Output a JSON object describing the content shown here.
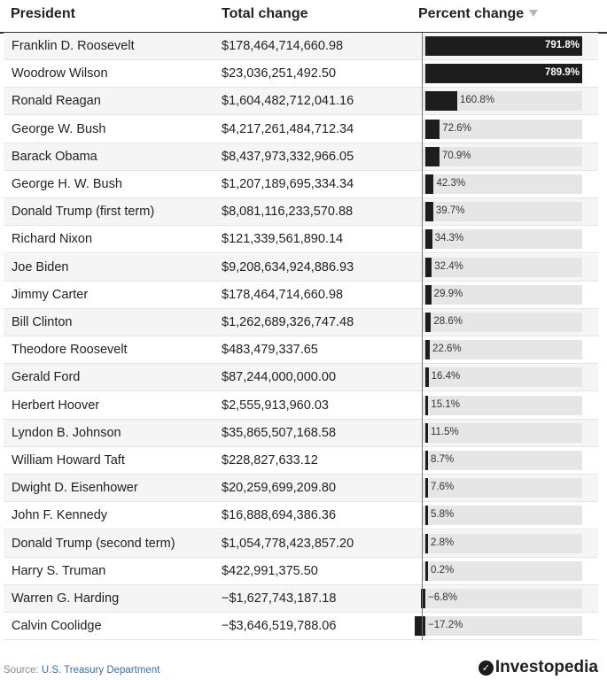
{
  "headers": {
    "president": "President",
    "total": "Total change",
    "percent": "Percent change"
  },
  "chart_data": {
    "type": "table",
    "columns": [
      "President",
      "Total change",
      "Percent change"
    ],
    "rows": [
      {
        "name": "Franklin D. Roosevelt",
        "total": "$178,464,714,660.98",
        "pct": 791.8,
        "label": "791.8%"
      },
      {
        "name": "Woodrow Wilson",
        "total": "$23,036,251,492.50",
        "pct": 789.9,
        "label": "789.9%"
      },
      {
        "name": "Ronald Reagan",
        "total": "$1,604,482,712,041.16",
        "pct": 160.8,
        "label": "160.8%"
      },
      {
        "name": "George W. Bush",
        "total": "$4,217,261,484,712.34",
        "pct": 72.6,
        "label": "72.6%"
      },
      {
        "name": "Barack Obama",
        "total": "$8,437,973,332,966.05",
        "pct": 70.9,
        "label": "70.9%"
      },
      {
        "name": "George H. W. Bush",
        "total": "$1,207,189,695,334.34",
        "pct": 42.3,
        "label": "42.3%"
      },
      {
        "name": "Donald Trump (first term)",
        "total": "$8,081,116,233,570.88",
        "pct": 39.7,
        "label": "39.7%"
      },
      {
        "name": "Richard Nixon",
        "total": "$121,339,561,890.14",
        "pct": 34.3,
        "label": "34.3%"
      },
      {
        "name": "Joe Biden",
        "total": "$9,208,634,924,886.93",
        "pct": 32.4,
        "label": "32.4%"
      },
      {
        "name": "Jimmy Carter",
        "total": "$178,464,714,660.98",
        "pct": 29.9,
        "label": "29.9%"
      },
      {
        "name": "Bill Clinton",
        "total": "$1,262,689,326,747.48",
        "pct": 28.6,
        "label": "28.6%"
      },
      {
        "name": "Theodore Roosevelt",
        "total": "$483,479,337.65",
        "pct": 22.6,
        "label": "22.6%"
      },
      {
        "name": "Gerald Ford",
        "total": "$87,244,000,000.00",
        "pct": 16.4,
        "label": "16.4%"
      },
      {
        "name": "Herbert Hoover",
        "total": "$2,555,913,960.03",
        "pct": 15.1,
        "label": "15.1%"
      },
      {
        "name": "Lyndon B. Johnson",
        "total": "$35,865,507,168.58",
        "pct": 11.5,
        "label": "11.5%"
      },
      {
        "name": "William Howard Taft",
        "total": "$228,827,633.12",
        "pct": 8.7,
        "label": "8.7%"
      },
      {
        "name": "Dwight D. Eisenhower",
        "total": "$20,259,699,209.80",
        "pct": 7.6,
        "label": "7.6%"
      },
      {
        "name": "John F. Kennedy",
        "total": "$16,888,694,386.36",
        "pct": 5.8,
        "label": "5.8%"
      },
      {
        "name": "Donald Trump (second term)",
        "total": "$1,054,778,423,857.20",
        "pct": 2.8,
        "label": "2.8%"
      },
      {
        "name": "Harry S. Truman",
        "total": "$422,991,375.50",
        "pct": 0.2,
        "label": "0.2%"
      },
      {
        "name": "Warren G. Harding",
        "total": "−$1,627,743,187.18",
        "pct": -6.8,
        "label": "−6.8%"
      },
      {
        "name": "Calvin Coolidge",
        "total": "−$3,646,519,788.06",
        "pct": -17.2,
        "label": "−17.2%"
      }
    ],
    "bar_range": [
      -17.2,
      791.8
    ],
    "bar_color": "#1d1d1d",
    "track_color": "#e6e6e6"
  },
  "footer": {
    "prefix": "Source: ",
    "source": "U.S. Treasury Department"
  },
  "brand": {
    "name": "Investopedia",
    "mark": "✓"
  },
  "sort_icon": "triangle-down-icon"
}
